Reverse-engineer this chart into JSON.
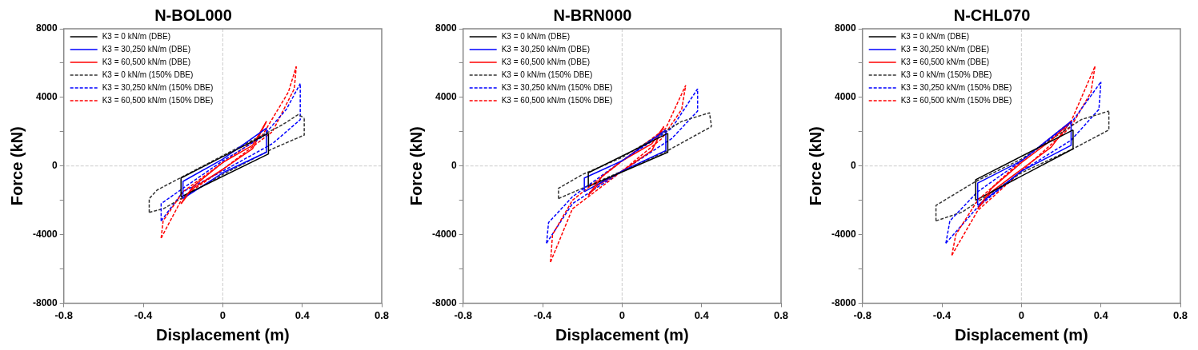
{
  "chart_data": [
    {
      "type": "line",
      "title": "N-BOL000",
      "xlabel": "Displacement (m)",
      "ylabel": "Force (kN)",
      "xlim": [
        -0.8,
        0.8
      ],
      "xticks": [
        -0.8,
        -0.4,
        0,
        0.4,
        0.8
      ],
      "ylim": [
        -8000,
        8000
      ],
      "yticks": [
        -8000,
        {
          "value": -6000,
          "label": null
        },
        -4000,
        {
          "value": -2000,
          "label": null
        },
        0,
        {
          "value": 2000,
          "label": null
        },
        4000,
        {
          "value": 6000,
          "label": null
        },
        8000
      ],
      "grid": false,
      "legend": "top left",
      "marker": "none",
      "ref_lines": [
        {
          "axis": "x",
          "value": 0,
          "color": "#cccccc",
          "line_style": "dashed"
        },
        {
          "axis": "y",
          "value": 0,
          "color": "#cccccc",
          "line_style": "dashed"
        }
      ],
      "series": [
        {
          "name": "K3 = 0 kN/m (DBE)",
          "color": "#000000",
          "line_style": "solid",
          "x": [
            -0.21,
            -0.21,
            0.23
          ],
          "values": [
            -1800,
            -700,
            1900
          ]
        },
        {
          "name": "K3 = 30,250 kN/m (DBE)",
          "color": "#0000ff",
          "line_style": "solid",
          "x": [
            -0.2,
            -0.2,
            0,
            0.22
          ],
          "values": [
            -1900,
            -900,
            400,
            2200
          ]
        },
        {
          "name": "K3 = 60,500 kN/m (DBE)",
          "color": "#ff0000",
          "line_style": "solid",
          "x": [
            -0.21,
            -0.15,
            0,
            0.15,
            0.22
          ],
          "values": [
            -2200,
            -1200,
            200,
            1200,
            2600
          ]
        },
        {
          "name": "K3 = 0 kN/m (150% DBE)",
          "color": "#333333",
          "line_style": "dashed",
          "x": [
            -0.37,
            -0.37,
            -0.33,
            0,
            0.3,
            0.38,
            0.41
          ],
          "values": [
            -2700,
            -1900,
            -1400,
            600,
            2400,
            3000,
            2800
          ]
        },
        {
          "name": "K3 = 30,250 kN/m (150% DBE)",
          "color": "#0000ff",
          "line_style": "dashed",
          "x": [
            -0.31,
            -0.31,
            -0.2,
            0,
            0.2,
            0.32,
            0.39
          ],
          "values": [
            -3200,
            -2200,
            -1300,
            300,
            1700,
            3300,
            4800
          ]
        },
        {
          "name": "K3 = 60,500 kN/m (150% DBE)",
          "color": "#ff0000",
          "line_style": "dashed",
          "x": [
            -0.31,
            -0.3,
            -0.2,
            0,
            0.2,
            0.33,
            0.37
          ],
          "values": [
            -4200,
            -3200,
            -1500,
            200,
            1800,
            4300,
            5800
          ]
        },
        {
          "color": "#000000",
          "line_style": "solid",
          "x": [
            -0.21,
            0.23,
            0.23
          ],
          "values": [
            -1800,
            700,
            1900
          ]
        },
        {
          "color": "#0000ff",
          "line_style": "solid",
          "x": [
            -0.2,
            0,
            0.22,
            0.22
          ],
          "values": [
            -1900,
            -400,
            800,
            2200
          ]
        },
        {
          "color": "#ff0000",
          "line_style": "solid",
          "x": [
            -0.21,
            -0.15,
            0,
            0.15,
            0.22
          ],
          "values": [
            -2200,
            -1300,
            -200,
            1000,
            2600
          ]
        },
        {
          "color": "#333333",
          "line_style": "dashed",
          "x": [
            -0.37,
            -0.3,
            0,
            0.25,
            0.41,
            0.41
          ],
          "values": [
            -2700,
            -2500,
            -500,
            1000,
            1800,
            2800
          ]
        },
        {
          "color": "#0000ff",
          "line_style": "dashed",
          "x": [
            -0.31,
            -0.2,
            0,
            0.25,
            0.39,
            0.39
          ],
          "values": [
            -3200,
            -1500,
            -300,
            1300,
            2700,
            4800
          ]
        },
        {
          "color": "#ff0000",
          "line_style": "dashed",
          "x": [
            -0.31,
            -0.2,
            0,
            0.25,
            0.36,
            0.37
          ],
          "values": [
            -4200,
            -1800,
            -200,
            2000,
            4500,
            5800
          ]
        }
      ]
    },
    {
      "type": "line",
      "title": "N-BRN000",
      "xlabel": "Displacement (m)",
      "ylabel": "Force (kN)",
      "xlim": [
        -0.8,
        0.8
      ],
      "xticks": [
        -0.8,
        -0.4,
        0,
        0.4,
        0.8
      ],
      "ylim": [
        -8000,
        8000
      ],
      "yticks": [
        -8000,
        {
          "value": -6000,
          "label": null
        },
        -4000,
        {
          "value": -2000,
          "label": null
        },
        0,
        {
          "value": 2000,
          "label": null
        },
        4000,
        {
          "value": 6000,
          "label": null
        },
        8000
      ],
      "grid": false,
      "legend": "top left",
      "marker": "none",
      "ref_lines": [
        {
          "axis": "x",
          "value": 0,
          "color": "#cccccc",
          "line_style": "dashed"
        },
        {
          "axis": "y",
          "value": 0,
          "color": "#cccccc",
          "line_style": "dashed"
        }
      ],
      "series": [
        {
          "name": "K3 = 0 kN/m (DBE)",
          "color": "#000000",
          "line_style": "solid",
          "x": [
            -0.17,
            -0.17,
            0.23
          ],
          "values": [
            -1200,
            -400,
            1900
          ]
        },
        {
          "name": "K3 = 30,250 kN/m (DBE)",
          "color": "#0000ff",
          "line_style": "solid",
          "x": [
            -0.19,
            -0.19,
            0,
            0.22
          ],
          "values": [
            -1500,
            -700,
            300,
            2100
          ]
        },
        {
          "name": "K3 = 60,500 kN/m (DBE)",
          "color": "#ff0000",
          "line_style": "solid",
          "x": [
            -0.17,
            -0.1,
            0,
            0.15,
            0.21
          ],
          "values": [
            -1700,
            -600,
            300,
            1300,
            2300
          ]
        },
        {
          "name": "K3 = 0 kN/m (150% DBE)",
          "color": "#333333",
          "line_style": "dashed",
          "x": [
            -0.32,
            -0.32,
            -0.2,
            0,
            0.3,
            0.44,
            0.45
          ],
          "values": [
            -1900,
            -1300,
            -500,
            500,
            2600,
            3100,
            2300
          ]
        },
        {
          "name": "K3 = 30,250 kN/m (150% DBE)",
          "color": "#0000ff",
          "line_style": "dashed",
          "x": [
            -0.38,
            -0.37,
            -0.25,
            0,
            0.25,
            0.38
          ],
          "values": [
            -4500,
            -3300,
            -1800,
            300,
            2200,
            4500
          ]
        },
        {
          "name": "K3 = 60,500 kN/m (150% DBE)",
          "color": "#ff0000",
          "line_style": "dashed",
          "x": [
            -0.36,
            -0.35,
            -0.25,
            0,
            0.22,
            0.32
          ],
          "values": [
            -5600,
            -4000,
            -2000,
            300,
            2200,
            4700
          ]
        },
        {
          "color": "#000000",
          "line_style": "solid",
          "x": [
            -0.17,
            0.23,
            0.23
          ],
          "values": [
            -1200,
            800,
            1900
          ]
        },
        {
          "color": "#0000ff",
          "line_style": "solid",
          "x": [
            -0.19,
            0,
            0.22,
            0.22
          ],
          "values": [
            -1500,
            -300,
            900,
            2100
          ]
        },
        {
          "color": "#ff0000",
          "line_style": "solid",
          "x": [
            -0.17,
            -0.12,
            0,
            0.15,
            0.21
          ],
          "values": [
            -1700,
            -1100,
            -300,
            900,
            2300
          ]
        },
        {
          "color": "#333333",
          "line_style": "dashed",
          "x": [
            -0.32,
            -0.2,
            0,
            0.23,
            0.45
          ],
          "values": [
            -1900,
            -1300,
            -300,
            900,
            2300
          ]
        },
        {
          "color": "#0000ff",
          "line_style": "dashed",
          "x": [
            -0.38,
            -0.25,
            0,
            0.25,
            0.38,
            0.38
          ],
          "values": [
            -4500,
            -2200,
            -300,
            1600,
            3200,
            4500
          ]
        },
        {
          "color": "#ff0000",
          "line_style": "dashed",
          "x": [
            -0.36,
            -0.25,
            0,
            0.2,
            0.3,
            0.32
          ],
          "values": [
            -5600,
            -2500,
            -300,
            1600,
            3300,
            4700
          ]
        }
      ]
    },
    {
      "type": "line",
      "title": "N-CHL070",
      "xlabel": "Displacement (m)",
      "ylabel": "Force (kN)",
      "xlim": [
        -0.8,
        0.8
      ],
      "xticks": [
        -0.8,
        -0.4,
        0,
        0.4,
        0.8
      ],
      "ylim": [
        -8000,
        8000
      ],
      "yticks": [
        -8000,
        {
          "value": -6000,
          "label": null
        },
        -4000,
        {
          "value": -2000,
          "label": null
        },
        0,
        {
          "value": 2000,
          "label": null
        },
        4000,
        {
          "value": 6000,
          "label": null
        },
        8000
      ],
      "grid": false,
      "legend": "top left",
      "marker": "none",
      "ref_lines": [
        {
          "axis": "x",
          "value": 0,
          "color": "#cccccc",
          "line_style": "dashed"
        },
        {
          "axis": "y",
          "value": 0,
          "color": "#cccccc",
          "line_style": "dashed"
        }
      ],
      "series": [
        {
          "name": "K3 = 0 kN/m (DBE)",
          "color": "#000000",
          "line_style": "solid",
          "x": [
            -0.23,
            -0.23,
            0.26
          ],
          "values": [
            -2000,
            -800,
            2100
          ]
        },
        {
          "name": "K3 = 30,250 kN/m (DBE)",
          "color": "#0000ff",
          "line_style": "solid",
          "x": [
            -0.22,
            -0.22,
            0,
            0.25
          ],
          "values": [
            -2300,
            -1000,
            300,
            2600
          ]
        },
        {
          "name": "K3 = 60,500 kN/m (DBE)",
          "color": "#ff0000",
          "line_style": "solid",
          "x": [
            -0.22,
            -0.15,
            0,
            0.15,
            0.25
          ],
          "values": [
            -2500,
            -1300,
            200,
            1500,
            2600
          ]
        },
        {
          "name": "K3 = 0 kN/m (150% DBE)",
          "color": "#333333",
          "line_style": "dashed",
          "x": [
            -0.43,
            -0.43,
            -0.23,
            0,
            0.3,
            0.44
          ],
          "values": [
            -3200,
            -2300,
            -900,
            400,
            2700,
            3200
          ]
        },
        {
          "name": "K3 = 30,250 kN/m (150% DBE)",
          "color": "#0000ff",
          "line_style": "dashed",
          "x": [
            -0.38,
            -0.36,
            -0.22,
            0,
            0.25,
            0.4
          ],
          "values": [
            -4500,
            -3200,
            -1500,
            300,
            2500,
            4900
          ]
        },
        {
          "name": "K3 = 60,500 kN/m (150% DBE)",
          "color": "#ff0000",
          "line_style": "dashed",
          "x": [
            -0.35,
            -0.33,
            -0.22,
            0,
            0.25,
            0.37
          ],
          "values": [
            -5200,
            -4000,
            -2000,
            300,
            2600,
            5800
          ]
        },
        {
          "color": "#000000",
          "line_style": "solid",
          "x": [
            -0.23,
            0.26,
            0.26
          ],
          "values": [
            -2000,
            1000,
            2100
          ]
        },
        {
          "color": "#0000ff",
          "line_style": "solid",
          "x": [
            -0.22,
            0,
            0.25,
            0.25
          ],
          "values": [
            -2300,
            -300,
            1200,
            2600
          ]
        },
        {
          "color": "#ff0000",
          "line_style": "solid",
          "x": [
            -0.22,
            -0.15,
            0,
            0.15,
            0.25
          ],
          "values": [
            -2500,
            -1500,
            -200,
            1100,
            2600
          ]
        },
        {
          "color": "#333333",
          "line_style": "dashed",
          "x": [
            -0.43,
            -0.3,
            0,
            0.26,
            0.44,
            0.44
          ],
          "values": [
            -3200,
            -2700,
            -400,
            1000,
            2100,
            3200
          ]
        },
        {
          "color": "#0000ff",
          "line_style": "dashed",
          "x": [
            -0.38,
            -0.22,
            0,
            0.25,
            0.39,
            0.4
          ],
          "values": [
            -4500,
            -2400,
            -300,
            1500,
            3300,
            4900
          ]
        },
        {
          "color": "#ff0000",
          "line_style": "dashed",
          "x": [
            -0.35,
            -0.22,
            0,
            0.25,
            0.35,
            0.37
          ],
          "values": [
            -5200,
            -2600,
            -300,
            2300,
            4300,
            5800
          ]
        }
      ]
    }
  ]
}
